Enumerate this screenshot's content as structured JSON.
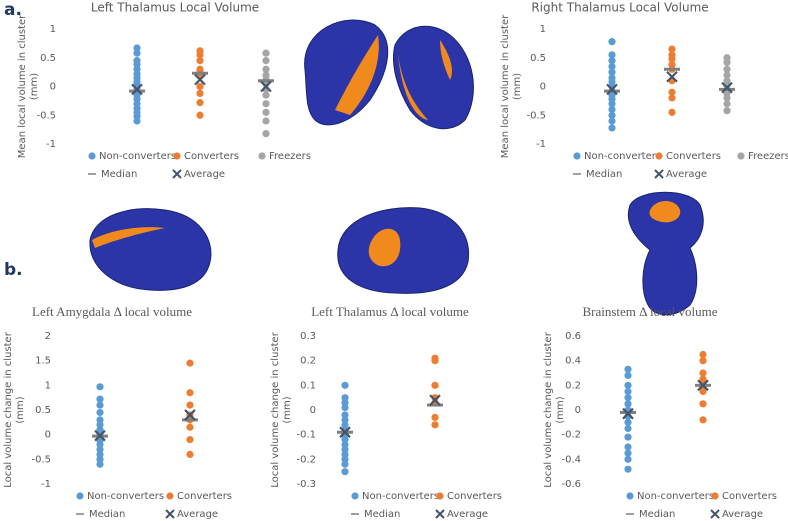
{
  "panel_labels": [
    "a.",
    "b."
  ],
  "chart_data": [
    {
      "type": "strip",
      "title": "Left Thalamus Local Volume",
      "y_label": [
        "Mean local volume in cluster",
        "(mm)"
      ],
      "ylim": [
        -1,
        1
      ],
      "yticks": [
        -1,
        -0.5,
        0,
        0.5,
        1
      ],
      "median_label": "Median",
      "average_label": "Average",
      "series": [
        {
          "name": "Non-converters",
          "color": "#5b9bd5",
          "median": -0.08,
          "average": -0.05,
          "values": [
            0.67,
            0.58,
            0.45,
            0.38,
            0.3,
            0.22,
            0.15,
            0.08,
            0.02,
            -0.05,
            -0.1,
            -0.15,
            -0.22,
            -0.3,
            -0.38,
            -0.45,
            -0.52,
            -0.6
          ]
        },
        {
          "name": "Converters",
          "color": "#ed7d31",
          "median": 0.23,
          "average": 0.12,
          "values": [
            0.62,
            0.55,
            0.45,
            0.3,
            0.25,
            0.2,
            0.0,
            -0.12,
            -0.28,
            -0.5
          ]
        },
        {
          "name": "Freezers",
          "color": "#a5a5a5",
          "median": 0.1,
          "average": 0.0,
          "values": [
            0.58,
            0.45,
            0.3,
            0.2,
            0.12,
            0.05,
            -0.05,
            -0.15,
            -0.3,
            -0.45,
            -0.6,
            -0.82
          ]
        }
      ]
    },
    {
      "type": "strip",
      "title": "Right Thalamus Local Volume",
      "y_label": [
        "Mean local volume in cluster",
        "(mm)"
      ],
      "ylim": [
        -1,
        1
      ],
      "yticks": [
        -1,
        -0.5,
        0,
        0.5,
        1
      ],
      "median_label": "Median",
      "average_label": "Average",
      "series": [
        {
          "name": "Non-converters",
          "color": "#5b9bd5",
          "median": -0.08,
          "average": -0.05,
          "values": [
            0.78,
            0.55,
            0.45,
            0.35,
            0.25,
            0.15,
            0.08,
            0.0,
            -0.08,
            -0.15,
            -0.22,
            -0.3,
            -0.4,
            -0.5,
            -0.6,
            -0.72
          ]
        },
        {
          "name": "Converters",
          "color": "#ed7d31",
          "median": 0.3,
          "average": 0.17,
          "values": [
            0.65,
            0.55,
            0.48,
            0.38,
            0.3,
            0.1,
            -0.1,
            -0.2,
            -0.45
          ]
        },
        {
          "name": "Freezers",
          "color": "#a5a5a5",
          "median": -0.05,
          "average": -0.02,
          "values": [
            0.5,
            0.42,
            0.3,
            0.2,
            0.1,
            0.02,
            -0.05,
            -0.12,
            -0.2,
            -0.3,
            -0.42
          ]
        }
      ]
    },
    {
      "type": "strip",
      "title": "Left Amygdala Δ local volume",
      "y_label": [
        "Local volume change in cluster",
        "(mm)"
      ],
      "ylim": [
        -1,
        2
      ],
      "yticks": [
        -1,
        -0.5,
        0,
        0.5,
        1,
        1.5,
        2
      ],
      "median_label": "Median",
      "average_label": "Average",
      "series": [
        {
          "name": "Non-converters",
          "color": "#5b9bd5",
          "median": -0.03,
          "average": -0.02,
          "values": [
            0.97,
            0.72,
            0.6,
            0.45,
            0.3,
            0.2,
            0.1,
            0.02,
            -0.05,
            -0.12,
            -0.2,
            -0.3,
            -0.4,
            -0.5,
            -0.6
          ]
        },
        {
          "name": "Converters",
          "color": "#ed7d31",
          "median": 0.3,
          "average": 0.4,
          "values": [
            1.45,
            0.85,
            0.6,
            0.4,
            0.3,
            0.15,
            -0.1,
            -0.4
          ]
        }
      ]
    },
    {
      "type": "strip",
      "title": "Left Thalamus Δ local volume",
      "y_label": [
        "Local volume change in cluster",
        "(mm)"
      ],
      "ylim": [
        -0.3,
        0.3
      ],
      "yticks": [
        -0.3,
        -0.2,
        -0.1,
        0,
        0.1,
        0.2,
        0.3
      ],
      "median_label": "Median",
      "average_label": "Average",
      "series": [
        {
          "name": "Non-converters",
          "color": "#5b9bd5",
          "median": -0.09,
          "average": -0.09,
          "values": [
            0.1,
            0.05,
            0.03,
            0.01,
            -0.02,
            -0.04,
            -0.06,
            -0.08,
            -0.1,
            -0.12,
            -0.14,
            -0.16,
            -0.18,
            -0.2,
            -0.22,
            -0.25
          ]
        },
        {
          "name": "Converters",
          "color": "#ed7d31",
          "median": 0.02,
          "average": 0.04,
          "values": [
            0.21,
            0.2,
            0.1,
            0.05,
            0.03,
            -0.03,
            -0.06
          ]
        }
      ]
    },
    {
      "type": "strip",
      "title": "Brainstem Δ local volume",
      "y_label": [
        "Local volume change in cluster",
        "(mm)"
      ],
      "ylim": [
        -0.6,
        0.6
      ],
      "yticks": [
        -0.6,
        -0.4,
        -0.2,
        0,
        0.2,
        0.4,
        0.6
      ],
      "median_label": "Median",
      "average_label": "Average",
      "series": [
        {
          "name": "Non-converters",
          "color": "#5b9bd5",
          "median": -0.02,
          "average": -0.03,
          "values": [
            0.33,
            0.28,
            0.2,
            0.15,
            0.1,
            0.05,
            0.0,
            -0.05,
            -0.1,
            -0.15,
            -0.22,
            -0.3,
            -0.35,
            -0.4,
            -0.48
          ]
        },
        {
          "name": "Converters",
          "color": "#ed7d31",
          "median": 0.2,
          "average": 0.2,
          "values": [
            0.45,
            0.4,
            0.3,
            0.25,
            0.2,
            0.15,
            0.05,
            -0.08
          ]
        }
      ]
    }
  ]
}
